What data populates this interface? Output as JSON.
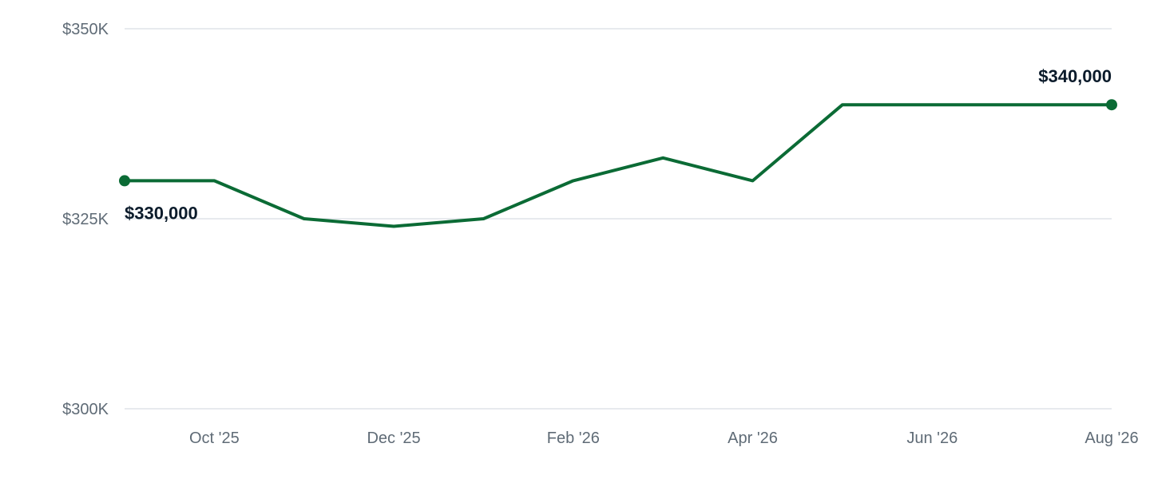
{
  "colors": {
    "line": "#0b6b35",
    "grid": "#dfe3e8",
    "tick_text": "#5f6b76",
    "label_text": "#0b1b2b"
  },
  "chart_data": {
    "type": "line",
    "title": "",
    "xlabel": "",
    "ylabel": "",
    "x": [
      "2025-09",
      "2025-10",
      "2025-11",
      "2025-12",
      "2026-01",
      "2026-02",
      "2026-03",
      "2026-04",
      "2026-05",
      "2026-06",
      "2026-07",
      "2026-08"
    ],
    "series": [
      {
        "values": [
          330000,
          330000,
          325000,
          324000,
          325000,
          330000,
          333000,
          330000,
          340000,
          340000,
          340000,
          340000
        ]
      }
    ],
    "ylim": [
      300000,
      350000
    ],
    "y_ticks": [
      {
        "value": 350000,
        "label": "$350K"
      },
      {
        "value": 325000,
        "label": "$325K"
      },
      {
        "value": 300000,
        "label": "$300K"
      }
    ],
    "x_ticks": [
      {
        "x": "2025-10",
        "label": "Oct '25"
      },
      {
        "x": "2025-12",
        "label": "Dec '25"
      },
      {
        "x": "2026-02",
        "label": "Feb '26"
      },
      {
        "x": "2026-04",
        "label": "Apr '26"
      },
      {
        "x": "2026-06",
        "label": "Jun '26"
      },
      {
        "x": "2026-08",
        "label": "Aug '26"
      }
    ],
    "annotations": [
      {
        "x": "2025-09",
        "y": 330000,
        "label": "$330,000",
        "position": "below"
      },
      {
        "x": "2026-08",
        "y": 340000,
        "label": "$340,000",
        "position": "above"
      }
    ],
    "grid": true,
    "legend": "none"
  }
}
